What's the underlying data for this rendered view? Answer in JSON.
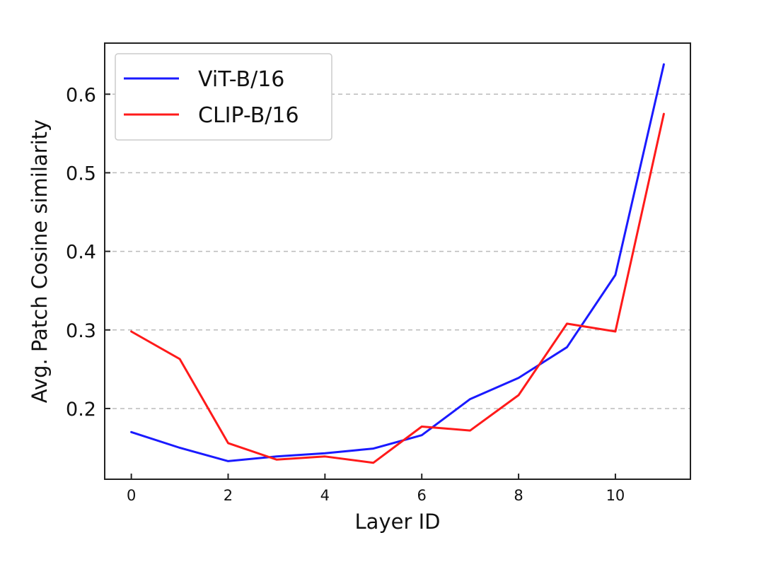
{
  "chart_data": {
    "type": "line",
    "title": "",
    "xlabel": "Layer ID",
    "ylabel": "Avg. Patch Cosine similarity",
    "x": [
      0,
      1,
      2,
      3,
      4,
      5,
      6,
      7,
      8,
      9,
      10,
      11
    ],
    "xlim": [
      -0.55,
      11.55
    ],
    "ylim": [
      0.11,
      0.665
    ],
    "xticks": [
      0,
      2,
      4,
      6,
      8,
      10
    ],
    "yticks": [
      0.2,
      0.3,
      0.4,
      0.5,
      0.6
    ],
    "x_tick_labels": [
      "0",
      "2",
      "4",
      "6",
      "8",
      "10"
    ],
    "y_tick_labels": [
      "0.2",
      "0.3",
      "0.4",
      "0.5",
      "0.6"
    ],
    "grid": "horizontal dashed",
    "legend_position": "top-left",
    "series": [
      {
        "name": "ViT-B/16",
        "color": "#1a1aff",
        "values": [
          0.17,
          0.15,
          0.133,
          0.139,
          0.143,
          0.149,
          0.166,
          0.212,
          0.239,
          0.278,
          0.37,
          0.638
        ]
      },
      {
        "name": "CLIP-B/16",
        "color": "#ff1a1a",
        "values": [
          0.298,
          0.263,
          0.156,
          0.135,
          0.139,
          0.131,
          0.177,
          0.172,
          0.217,
          0.308,
          0.298,
          0.575
        ]
      }
    ]
  }
}
